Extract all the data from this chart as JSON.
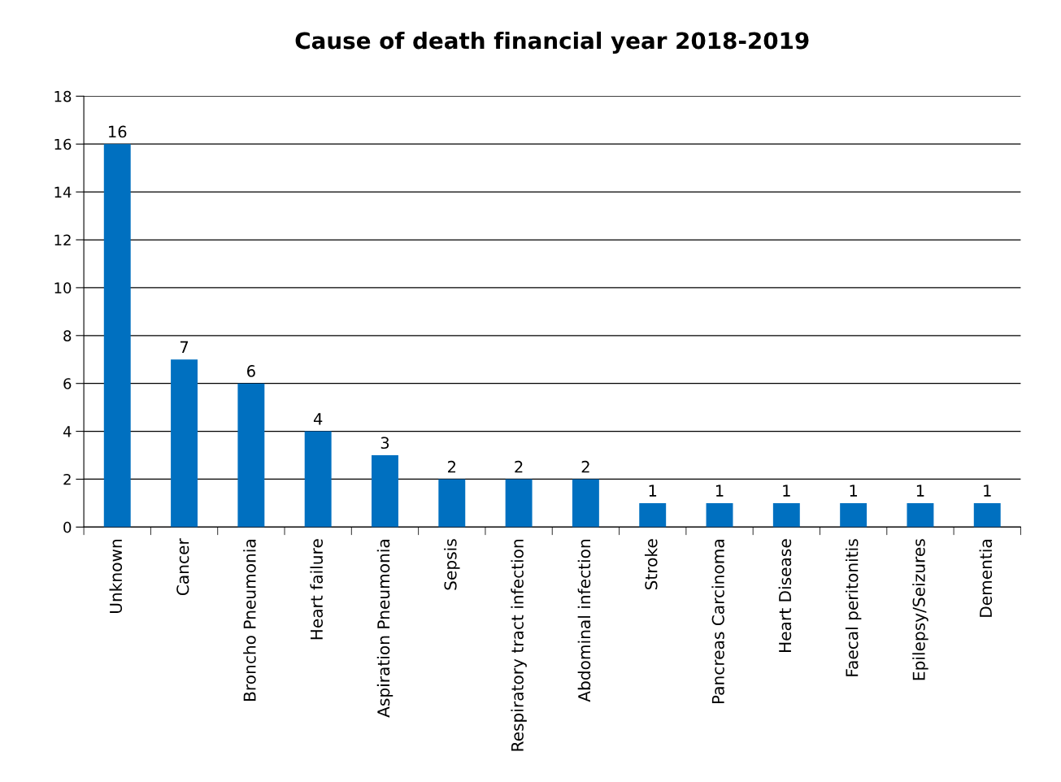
{
  "chart_data": {
    "type": "bar",
    "title": "Cause of death financial year 2018-2019",
    "categories": [
      "Unknown",
      "Cancer",
      "Broncho Pneumonia",
      "Heart failure",
      "Aspiration Pneumonia",
      "Sepsis",
      "Respiratory tract infection",
      "Abdominal infection",
      "Stroke",
      "Pancreas Carcinoma",
      "Heart Disease",
      "Faecal peritonitis",
      "Epilepsy/Seizures",
      "Dementia"
    ],
    "values": [
      16,
      7,
      6,
      4,
      3,
      2,
      2,
      2,
      1,
      1,
      1,
      1,
      1,
      1
    ],
    "color": "#0070c0",
    "ylim": [
      0,
      18
    ],
    "yticks": [
      0,
      2,
      4,
      6,
      8,
      10,
      12,
      14,
      16,
      18
    ],
    "grid": "y",
    "data_labels": true
  }
}
